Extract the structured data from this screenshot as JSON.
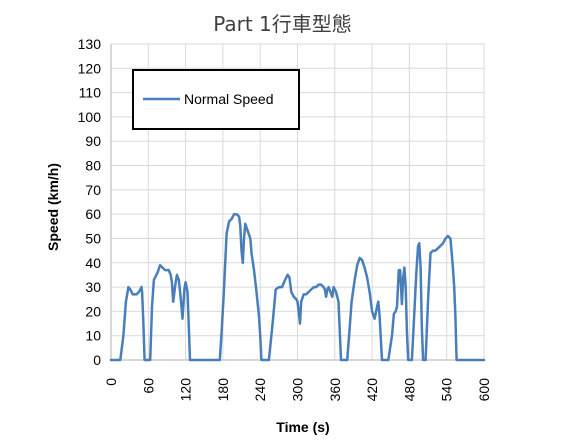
{
  "chart_data": {
    "type": "line",
    "title": "Part 1行車型態",
    "xlabel": "Time (s)",
    "ylabel": "Speed (km/h)",
    "xlim": [
      0,
      600
    ],
    "ylim": [
      0,
      130
    ],
    "x_ticks": [
      0,
      60,
      120,
      180,
      240,
      300,
      360,
      420,
      480,
      540,
      600
    ],
    "y_ticks": [
      0,
      10,
      20,
      30,
      40,
      50,
      60,
      70,
      80,
      90,
      100,
      110,
      120,
      130
    ],
    "grid": true,
    "legend_position": "top-left",
    "series": [
      {
        "name": "Normal Speed",
        "color": "#4a7ebb",
        "points": [
          [
            0,
            0
          ],
          [
            11,
            0
          ],
          [
            15,
            0
          ],
          [
            20,
            10
          ],
          [
            24,
            24
          ],
          [
            28,
            30
          ],
          [
            31,
            29
          ],
          [
            35,
            27
          ],
          [
            41,
            27
          ],
          [
            45,
            28
          ],
          [
            49,
            30
          ],
          [
            50,
            28
          ],
          [
            52,
            16
          ],
          [
            54,
            0
          ],
          [
            60,
            0
          ],
          [
            63,
            0
          ],
          [
            66,
            22
          ],
          [
            69,
            33
          ],
          [
            71,
            34
          ],
          [
            75,
            36
          ],
          [
            79,
            39
          ],
          [
            83,
            38
          ],
          [
            87,
            37
          ],
          [
            93,
            37
          ],
          [
            96,
            35
          ],
          [
            98,
            32
          ],
          [
            100,
            24
          ],
          [
            103,
            30
          ],
          [
            106,
            35
          ],
          [
            109,
            33
          ],
          [
            112,
            26
          ],
          [
            115,
            17
          ],
          [
            118,
            29
          ],
          [
            120,
            32
          ],
          [
            123,
            28
          ],
          [
            125,
            15
          ],
          [
            127,
            0
          ],
          [
            150,
            0
          ],
          [
            170,
            0
          ],
          [
            175,
            0
          ],
          [
            178,
            12
          ],
          [
            182,
            30
          ],
          [
            186,
            52
          ],
          [
            190,
            57
          ],
          [
            194,
            58
          ],
          [
            198,
            60
          ],
          [
            202,
            60
          ],
          [
            206,
            59
          ],
          [
            208,
            55
          ],
          [
            210,
            45
          ],
          [
            212,
            40
          ],
          [
            214,
            50
          ],
          [
            216,
            56
          ],
          [
            220,
            53
          ],
          [
            224,
            50
          ],
          [
            226,
            44
          ],
          [
            230,
            37
          ],
          [
            234,
            28
          ],
          [
            238,
            18
          ],
          [
            240,
            10
          ],
          [
            242,
            0
          ],
          [
            254,
            0
          ],
          [
            260,
            15
          ],
          [
            265,
            29
          ],
          [
            270,
            30
          ],
          [
            275,
            30
          ],
          [
            280,
            33
          ],
          [
            284,
            35
          ],
          [
            287,
            34
          ],
          [
            290,
            28
          ],
          [
            294,
            26
          ],
          [
            298,
            25
          ],
          [
            300,
            24
          ],
          [
            302,
            20
          ],
          [
            304,
            15
          ],
          [
            306,
            24
          ],
          [
            310,
            27
          ],
          [
            314,
            27
          ],
          [
            318,
            28
          ],
          [
            322,
            29
          ],
          [
            326,
            30
          ],
          [
            330,
            30
          ],
          [
            334,
            31
          ],
          [
            338,
            31
          ],
          [
            342,
            30
          ],
          [
            344,
            29
          ],
          [
            346,
            26
          ],
          [
            348,
            29
          ],
          [
            350,
            30
          ],
          [
            353,
            28
          ],
          [
            356,
            26
          ],
          [
            358,
            30
          ],
          [
            362,
            28
          ],
          [
            366,
            24
          ],
          [
            370,
            0
          ],
          [
            380,
            0
          ],
          [
            383,
            10
          ],
          [
            387,
            24
          ],
          [
            392,
            33
          ],
          [
            396,
            39
          ],
          [
            400,
            42
          ],
          [
            404,
            41
          ],
          [
            408,
            38
          ],
          [
            412,
            34
          ],
          [
            416,
            28
          ],
          [
            420,
            20
          ],
          [
            424,
            17
          ],
          [
            428,
            22
          ],
          [
            430,
            24
          ],
          [
            432,
            18
          ],
          [
            436,
            0
          ],
          [
            446,
            0
          ],
          [
            452,
            10
          ],
          [
            455,
            19
          ],
          [
            458,
            20
          ],
          [
            460,
            22
          ],
          [
            463,
            37
          ],
          [
            465,
            37
          ],
          [
            467,
            28
          ],
          [
            468,
            23
          ],
          [
            470,
            34
          ],
          [
            472,
            38
          ],
          [
            474,
            30
          ],
          [
            476,
            12
          ],
          [
            478,
            0
          ],
          [
            484,
            0
          ],
          [
            488,
            20
          ],
          [
            491,
            35
          ],
          [
            494,
            47
          ],
          [
            496,
            48
          ],
          [
            498,
            38
          ],
          [
            500,
            14
          ],
          [
            502,
            0
          ],
          [
            506,
            0
          ],
          [
            510,
            25
          ],
          [
            514,
            44
          ],
          [
            518,
            45
          ],
          [
            522,
            45
          ],
          [
            526,
            46
          ],
          [
            530,
            47
          ],
          [
            534,
            48
          ],
          [
            538,
            50
          ],
          [
            542,
            51
          ],
          [
            546,
            50
          ],
          [
            548,
            44
          ],
          [
            550,
            38
          ],
          [
            552,
            30
          ],
          [
            554,
            18
          ],
          [
            556,
            0
          ],
          [
            565,
            0
          ],
          [
            600,
            0
          ]
        ]
      }
    ]
  }
}
